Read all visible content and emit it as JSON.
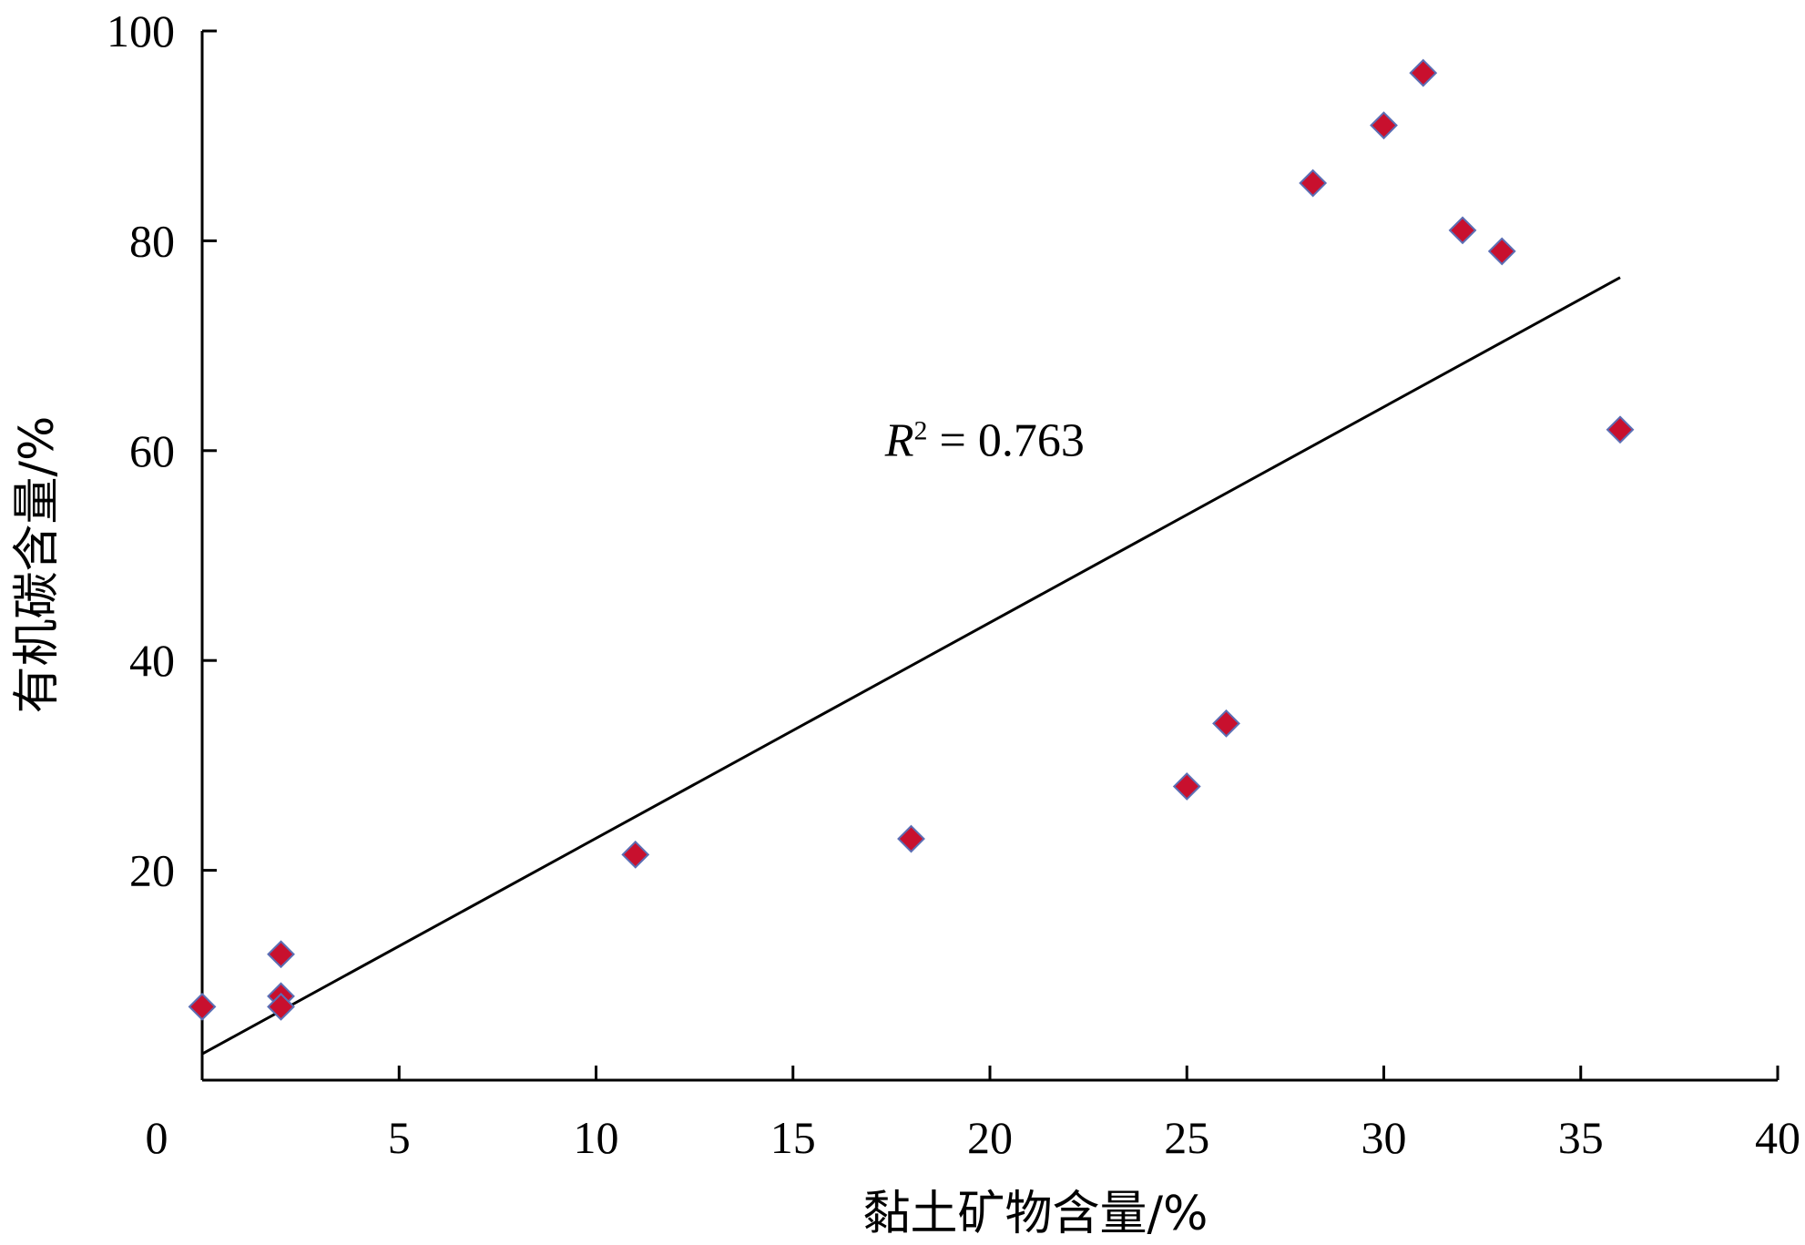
{
  "chart_data": {
    "type": "scatter",
    "title": "",
    "xlabel": "黏土矿物含量/%",
    "ylabel": "有机碳含量/%",
    "xlim": [
      0,
      40
    ],
    "ylim": [
      0,
      100
    ],
    "xticks": [
      0,
      5,
      10,
      15,
      20,
      25,
      30,
      35,
      40
    ],
    "yticks": [
      20,
      40,
      60,
      80,
      100
    ],
    "grid": false,
    "series": [
      {
        "marker": "diamond",
        "color": "#c8102e",
        "edge_color": "#5b6fb5",
        "points": [
          {
            "x": 0,
            "y": 7
          },
          {
            "x": 2,
            "y": 12
          },
          {
            "x": 2,
            "y": 8
          },
          {
            "x": 2,
            "y": 7
          },
          {
            "x": 11,
            "y": 21.5
          },
          {
            "x": 18,
            "y": 23
          },
          {
            "x": 25,
            "y": 28
          },
          {
            "x": 26,
            "y": 34
          },
          {
            "x": 28.2,
            "y": 85.5
          },
          {
            "x": 30,
            "y": 91
          },
          {
            "x": 31,
            "y": 96
          },
          {
            "x": 32,
            "y": 81
          },
          {
            "x": 33,
            "y": 79
          },
          {
            "x": 36,
            "y": 62
          }
        ]
      }
    ],
    "trendline": {
      "x": [
        0,
        36
      ],
      "y": [
        2.5,
        76.5
      ],
      "color": "#000000"
    },
    "annotation": {
      "prefix": "R",
      "superscript": "2",
      "text": " = 0.763",
      "x": 19,
      "y": 59.5
    }
  }
}
